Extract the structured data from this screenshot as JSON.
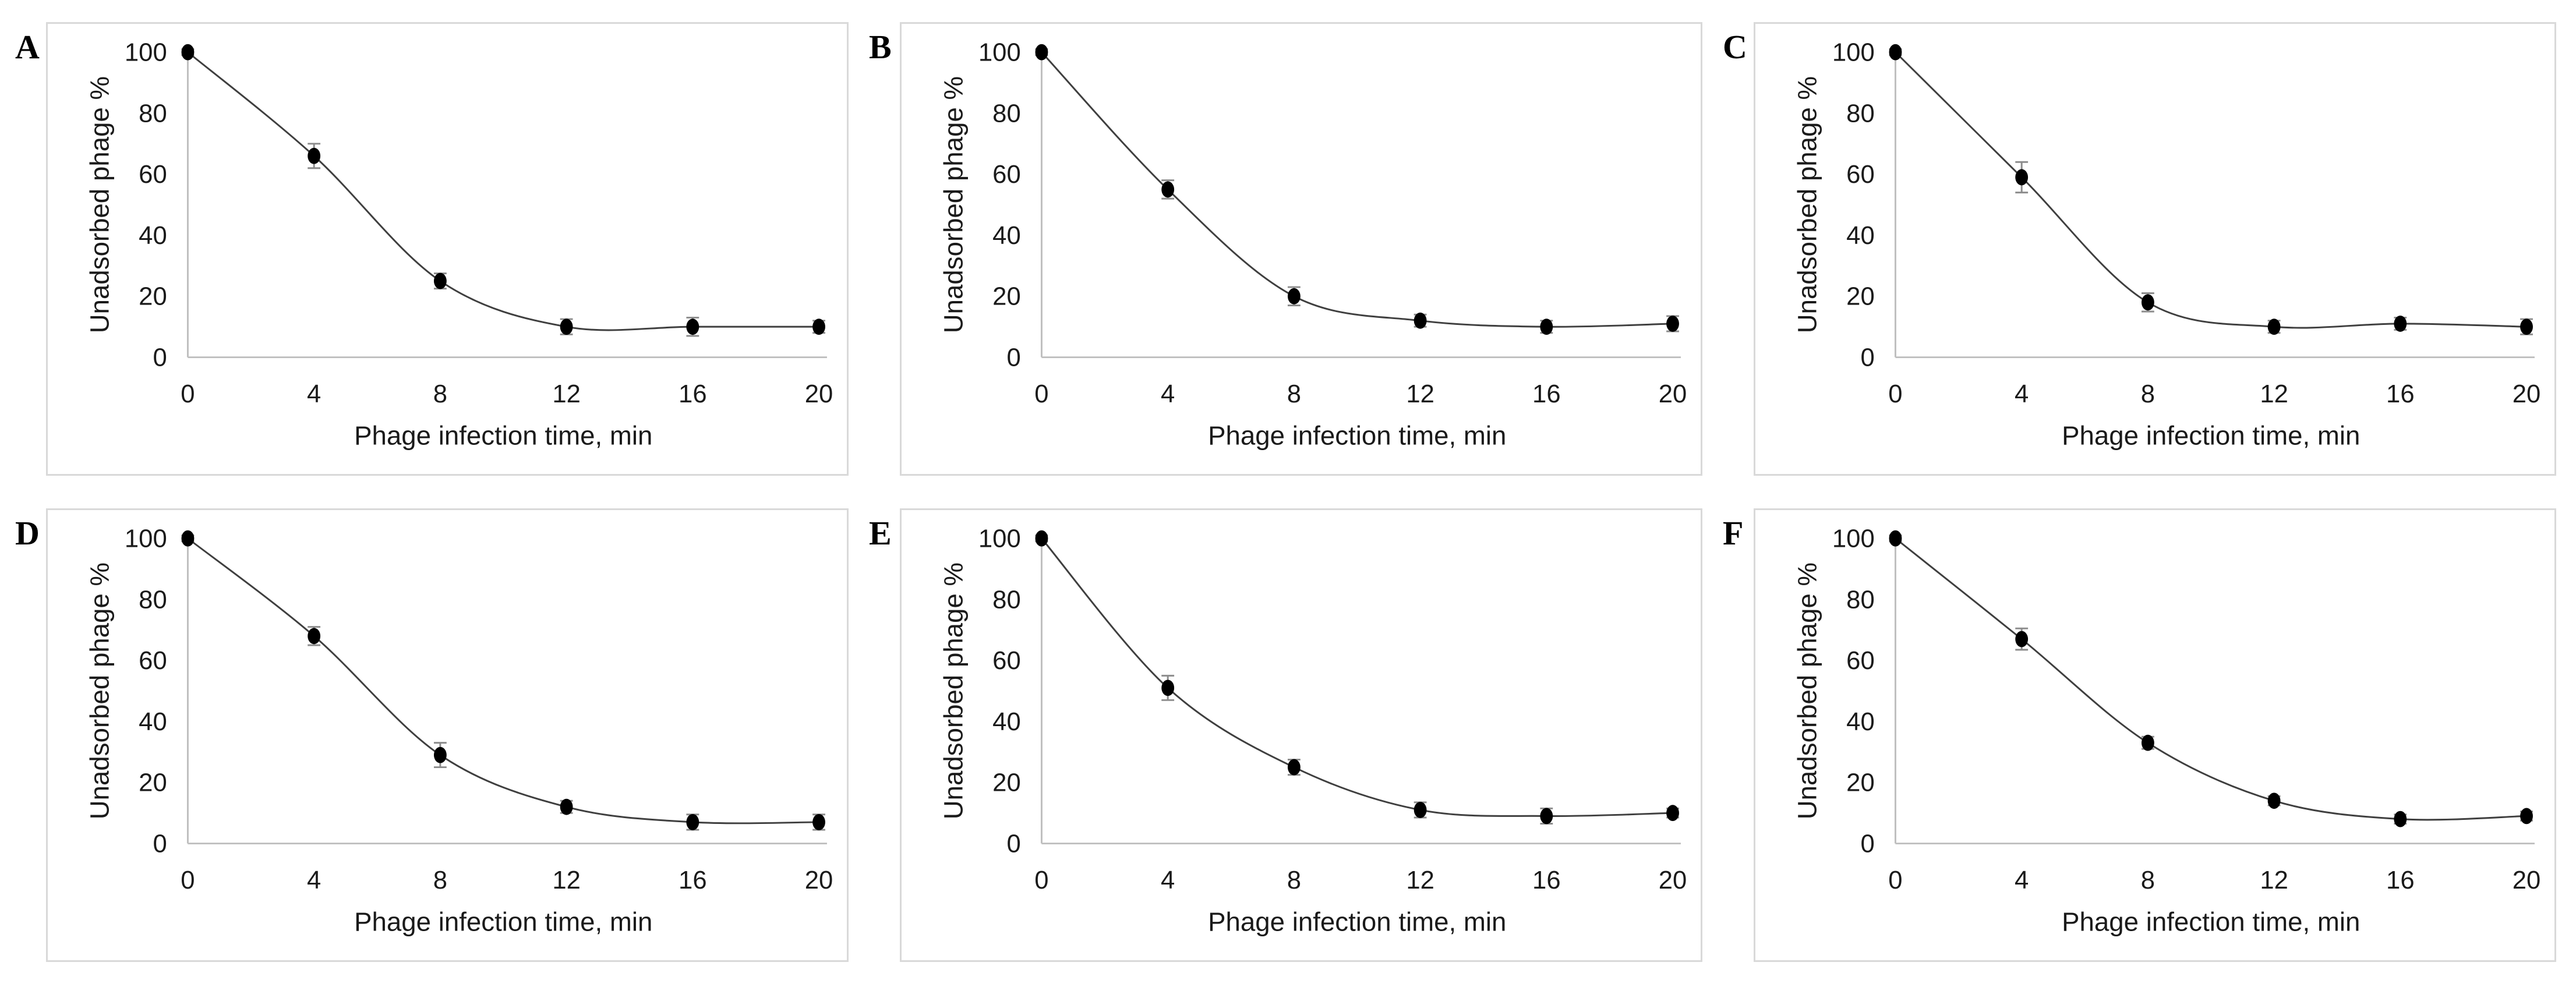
{
  "colors": {
    "background": "#ffffff",
    "panel_border": "#d9d9d9",
    "axis": "#bfbfbf",
    "line": "#3f3f3f",
    "marker": "#000000",
    "error_bar": "#8c8c8c",
    "text": "#1a1a1a",
    "panel_letter": "#000000"
  },
  "chart_data": [
    {
      "type": "line",
      "panel_label": "A",
      "x": [
        0,
        4,
        8,
        12,
        16,
        20
      ],
      "values": [
        100,
        66,
        25,
        10,
        10,
        10
      ],
      "errors": [
        1,
        4,
        2.5,
        2.5,
        3,
        2
      ],
      "xlabel": "Phage infection time, min",
      "ylabel": "Unadsorbed phage %",
      "xlim": [
        0,
        20
      ],
      "ylim": [
        0,
        100
      ],
      "xticks": [
        0,
        4,
        8,
        12,
        16,
        20
      ],
      "yticks": [
        0,
        20,
        40,
        60,
        80,
        100
      ],
      "grid": "off",
      "legend": "none",
      "marker": "filled-circle",
      "line_style": "smooth"
    },
    {
      "type": "line",
      "panel_label": "B",
      "x": [
        0,
        4,
        8,
        12,
        16,
        20
      ],
      "values": [
        100,
        55,
        20,
        12,
        10,
        11
      ],
      "errors": [
        1,
        3,
        3,
        2,
        2,
        2.5
      ],
      "xlabel": "Phage infection time, min",
      "ylabel": "Unadsorbed phage %",
      "xlim": [
        0,
        20
      ],
      "ylim": [
        0,
        100
      ],
      "xticks": [
        0,
        4,
        8,
        12,
        16,
        20
      ],
      "yticks": [
        0,
        20,
        40,
        60,
        80,
        100
      ],
      "grid": "off",
      "legend": "none",
      "marker": "filled-circle",
      "line_style": "smooth"
    },
    {
      "type": "line",
      "panel_label": "C",
      "x": [
        0,
        4,
        8,
        12,
        16,
        20
      ],
      "values": [
        100,
        59,
        18,
        10,
        11,
        10
      ],
      "errors": [
        1,
        5,
        3,
        2,
        2,
        2.5
      ],
      "xlabel": "Phage infection time, min",
      "ylabel": "Unadsorbed phage %",
      "xlim": [
        0,
        20
      ],
      "ylim": [
        0,
        100
      ],
      "xticks": [
        0,
        4,
        8,
        12,
        16,
        20
      ],
      "yticks": [
        0,
        20,
        40,
        60,
        80,
        100
      ],
      "grid": "off",
      "legend": "none",
      "marker": "filled-circle",
      "line_style": "smooth"
    },
    {
      "type": "line",
      "panel_label": "D",
      "x": [
        0,
        4,
        8,
        12,
        16,
        20
      ],
      "values": [
        100,
        68,
        29,
        12,
        7,
        7
      ],
      "errors": [
        1,
        3,
        4,
        2,
        2.5,
        2.5
      ],
      "xlabel": "Phage infection time, min",
      "ylabel": "Unadsorbed phage %",
      "xlim": [
        0,
        20
      ],
      "ylim": [
        0,
        100
      ],
      "xticks": [
        0,
        4,
        8,
        12,
        16,
        20
      ],
      "yticks": [
        0,
        20,
        40,
        60,
        80,
        100
      ],
      "grid": "off",
      "legend": "none",
      "marker": "filled-circle",
      "line_style": "smooth"
    },
    {
      "type": "line",
      "panel_label": "E",
      "x": [
        0,
        4,
        8,
        12,
        16,
        20
      ],
      "values": [
        100,
        51,
        25,
        11,
        9,
        10
      ],
      "errors": [
        1,
        4,
        2.5,
        2.5,
        2.5,
        1.5
      ],
      "xlabel": "Phage infection time, min",
      "ylabel": "Unadsorbed phage %",
      "xlim": [
        0,
        20
      ],
      "ylim": [
        0,
        100
      ],
      "xticks": [
        0,
        4,
        8,
        12,
        16,
        20
      ],
      "yticks": [
        0,
        20,
        40,
        60,
        80,
        100
      ],
      "grid": "off",
      "legend": "none",
      "marker": "filled-circle",
      "line_style": "smooth"
    },
    {
      "type": "line",
      "panel_label": "F",
      "x": [
        0,
        4,
        8,
        12,
        16,
        20
      ],
      "values": [
        100,
        67,
        33,
        14,
        8,
        9
      ],
      "errors": [
        1,
        3.5,
        2,
        1.5,
        1.5,
        1.5
      ],
      "xlabel": "Phage infection time, min",
      "ylabel": "Unadsorbed phage %",
      "xlim": [
        0,
        20
      ],
      "ylim": [
        0,
        100
      ],
      "xticks": [
        0,
        4,
        8,
        12,
        16,
        20
      ],
      "yticks": [
        0,
        20,
        40,
        60,
        80,
        100
      ],
      "grid": "off",
      "legend": "none",
      "marker": "filled-circle",
      "line_style": "smooth"
    }
  ]
}
